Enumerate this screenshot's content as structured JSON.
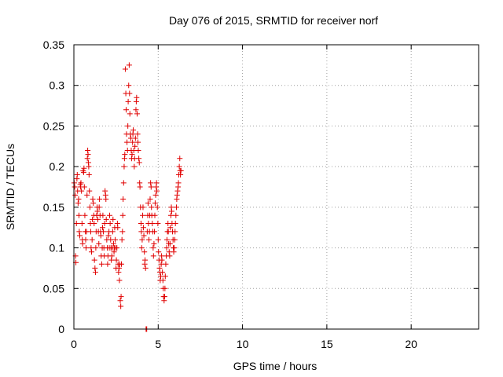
{
  "chart_data": {
    "type": "scatter",
    "title": "Day 076 of 2015, SRMTID for receiver norf",
    "xlabel": "GPS time / hours",
    "ylabel": "SRMTID / TECUs",
    "xlim": [
      0,
      24
    ],
    "ylim": [
      0,
      0.35
    ],
    "xticks": [
      "0",
      "5",
      "10",
      "15",
      "20"
    ],
    "yticks": [
      "0",
      "0.05",
      "0.1",
      "0.15",
      "0.2",
      "0.25",
      "0.3",
      "0.35"
    ],
    "grid": true,
    "marker": "+",
    "color": "#e00000",
    "points": [
      [
        0.02,
        0.18
      ],
      [
        0.05,
        0.175
      ],
      [
        0.08,
        0.165
      ],
      [
        0.1,
        0.09
      ],
      [
        0.12,
        0.082
      ],
      [
        0.15,
        0.13
      ],
      [
        0.18,
        0.185
      ],
      [
        0.2,
        0.19
      ],
      [
        0.22,
        0.17
      ],
      [
        0.25,
        0.155
      ],
      [
        0.28,
        0.16
      ],
      [
        0.3,
        0.14
      ],
      [
        0.32,
        0.12
      ],
      [
        0.35,
        0.115
      ],
      [
        0.38,
        0.178
      ],
      [
        0.4,
        0.175
      ],
      [
        0.42,
        0.18
      ],
      [
        0.45,
        0.17
      ],
      [
        0.48,
        0.13
      ],
      [
        0.5,
        0.11
      ],
      [
        0.52,
        0.105
      ],
      [
        0.55,
        0.195
      ],
      [
        0.58,
        0.193
      ],
      [
        0.6,
        0.198
      ],
      [
        0.62,
        0.175
      ],
      [
        0.65,
        0.14
      ],
      [
        0.68,
        0.12
      ],
      [
        0.7,
        0.11
      ],
      [
        0.72,
        0.1
      ],
      [
        0.75,
        0.12
      ],
      [
        0.78,
        0.165
      ],
      [
        0.8,
        0.21
      ],
      [
        0.82,
        0.22
      ],
      [
        0.84,
        0.215
      ],
      [
        0.86,
        0.205
      ],
      [
        0.88,
        0.2
      ],
      [
        0.9,
        0.19
      ],
      [
        0.92,
        0.17
      ],
      [
        0.95,
        0.15
      ],
      [
        0.98,
        0.13
      ],
      [
        1.0,
        0.12
      ],
      [
        1.02,
        0.1
      ],
      [
        1.05,
        0.095
      ],
      [
        1.08,
        0.11
      ],
      [
        1.1,
        0.135
      ],
      [
        1.12,
        0.16
      ],
      [
        1.15,
        0.155
      ],
      [
        1.18,
        0.14
      ],
      [
        1.2,
        0.13
      ],
      [
        1.22,
        0.085
      ],
      [
        1.25,
        0.075
      ],
      [
        1.28,
        0.07
      ],
      [
        1.3,
        0.1
      ],
      [
        1.32,
        0.12
      ],
      [
        1.35,
        0.14
      ],
      [
        1.38,
        0.15
      ],
      [
        1.4,
        0.145
      ],
      [
        1.42,
        0.135
      ],
      [
        1.45,
        0.12
      ],
      [
        1.48,
        0.105
      ],
      [
        1.5,
        0.15
      ],
      [
        1.52,
        0.16
      ],
      [
        1.55,
        0.14
      ],
      [
        1.58,
        0.12
      ],
      [
        1.6,
        0.115
      ],
      [
        1.62,
        0.09
      ],
      [
        1.65,
        0.08
      ],
      [
        1.68,
        0.1
      ],
      [
        1.7,
        0.125
      ],
      [
        1.72,
        0.14
      ],
      [
        1.75,
        0.12
      ],
      [
        1.78,
        0.1
      ],
      [
        1.8,
        0.09
      ],
      [
        1.82,
        0.13
      ],
      [
        1.85,
        0.17
      ],
      [
        1.88,
        0.165
      ],
      [
        1.9,
        0.16
      ],
      [
        1.92,
        0.135
      ],
      [
        1.95,
        0.11
      ],
      [
        1.98,
        0.1
      ],
      [
        2.0,
        0.08
      ],
      [
        2.02,
        0.09
      ],
      [
        2.05,
        0.115
      ],
      [
        2.08,
        0.12
      ],
      [
        2.1,
        0.1
      ],
      [
        2.12,
        0.14
      ],
      [
        2.15,
        0.13
      ],
      [
        2.18,
        0.11
      ],
      [
        2.2,
        0.1
      ],
      [
        2.22,
        0.085
      ],
      [
        2.25,
        0.09
      ],
      [
        2.28,
        0.1
      ],
      [
        2.3,
        0.12
      ],
      [
        2.32,
        0.135
      ],
      [
        2.35,
        0.105
      ],
      [
        2.38,
        0.095
      ],
      [
        2.4,
        0.1
      ],
      [
        2.42,
        0.125
      ],
      [
        2.45,
        0.11
      ],
      [
        2.48,
        0.1
      ],
      [
        2.5,
        0.075
      ],
      [
        2.52,
        0.085
      ],
      [
        2.55,
        0.1
      ],
      [
        2.58,
        0.13
      ],
      [
        2.6,
        0.125
      ],
      [
        2.62,
        0.08
      ],
      [
        2.65,
        0.07
      ],
      [
        2.68,
        0.075
      ],
      [
        2.7,
        0.06
      ],
      [
        2.72,
        0.08
      ],
      [
        2.75,
        0.035
      ],
      [
        2.78,
        0.028
      ],
      [
        2.8,
        0.04
      ],
      [
        2.82,
        0.08
      ],
      [
        2.85,
        0.11
      ],
      [
        2.88,
        0.12
      ],
      [
        2.9,
        0.14
      ],
      [
        2.92,
        0.16
      ],
      [
        2.95,
        0.18
      ],
      [
        2.98,
        0.2
      ],
      [
        3.0,
        0.21
      ],
      [
        3.02,
        0.215
      ],
      [
        3.05,
        0.32
      ],
      [
        3.08,
        0.29
      ],
      [
        3.1,
        0.27
      ],
      [
        3.12,
        0.24
      ],
      [
        3.15,
        0.23
      ],
      [
        3.18,
        0.22
      ],
      [
        3.2,
        0.25
      ],
      [
        3.22,
        0.28
      ],
      [
        3.25,
        0.3
      ],
      [
        3.28,
        0.325
      ],
      [
        3.3,
        0.29
      ],
      [
        3.32,
        0.265
      ],
      [
        3.35,
        0.24
      ],
      [
        3.38,
        0.235
      ],
      [
        3.4,
        0.22
      ],
      [
        3.42,
        0.21
      ],
      [
        3.45,
        0.215
      ],
      [
        3.48,
        0.23
      ],
      [
        3.5,
        0.24
      ],
      [
        3.52,
        0.245
      ],
      [
        3.55,
        0.22
      ],
      [
        3.58,
        0.2
      ],
      [
        3.6,
        0.21
      ],
      [
        3.62,
        0.225
      ],
      [
        3.65,
        0.235
      ],
      [
        3.68,
        0.27
      ],
      [
        3.7,
        0.28
      ],
      [
        3.72,
        0.285
      ],
      [
        3.75,
        0.265
      ],
      [
        3.78,
        0.24
      ],
      [
        3.8,
        0.23
      ],
      [
        3.82,
        0.22
      ],
      [
        3.85,
        0.21
      ],
      [
        3.88,
        0.205
      ],
      [
        3.9,
        0.18
      ],
      [
        3.92,
        0.175
      ],
      [
        3.95,
        0.15
      ],
      [
        3.98,
        0.13
      ],
      [
        4.0,
        0.12
      ],
      [
        4.02,
        0.1
      ],
      [
        4.05,
        0.11
      ],
      [
        4.08,
        0.14
      ],
      [
        4.1,
        0.15
      ],
      [
        4.12,
        0.125
      ],
      [
        4.15,
        0.115
      ],
      [
        4.18,
        0.095
      ],
      [
        4.2,
        0.08
      ],
      [
        4.22,
        0.085
      ],
      [
        4.25,
        0.075
      ],
      [
        4.28,
        0.0
      ],
      [
        4.3,
        0.0
      ],
      [
        4.32,
        0.0
      ],
      [
        4.35,
        0.12
      ],
      [
        4.38,
        0.14
      ],
      [
        4.4,
        0.155
      ],
      [
        4.42,
        0.13
      ],
      [
        4.45,
        0.11
      ],
      [
        4.48,
        0.12
      ],
      [
        4.5,
        0.14
      ],
      [
        4.52,
        0.16
      ],
      [
        4.55,
        0.18
      ],
      [
        4.58,
        0.175
      ],
      [
        4.6,
        0.15
      ],
      [
        4.62,
        0.14
      ],
      [
        4.65,
        0.13
      ],
      [
        4.68,
        0.12
      ],
      [
        4.7,
        0.1
      ],
      [
        4.72,
        0.09
      ],
      [
        4.75,
        0.105
      ],
      [
        4.78,
        0.12
      ],
      [
        4.8,
        0.14
      ],
      [
        4.82,
        0.155
      ],
      [
        4.85,
        0.165
      ],
      [
        4.88,
        0.175
      ],
      [
        4.9,
        0.18
      ],
      [
        4.92,
        0.17
      ],
      [
        4.95,
        0.15
      ],
      [
        4.98,
        0.13
      ],
      [
        5.0,
        0.11
      ],
      [
        5.02,
        0.095
      ],
      [
        5.05,
        0.085
      ],
      [
        5.08,
        0.075
      ],
      [
        5.1,
        0.07
      ],
      [
        5.12,
        0.06
      ],
      [
        5.15,
        0.065
      ],
      [
        5.18,
        0.08
      ],
      [
        5.2,
        0.09
      ],
      [
        5.22,
        0.085
      ],
      [
        5.25,
        0.07
      ],
      [
        5.28,
        0.06
      ],
      [
        5.3,
        0.05
      ],
      [
        5.32,
        0.04
      ],
      [
        5.35,
        0.035
      ],
      [
        5.38,
        0.04
      ],
      [
        5.4,
        0.05
      ],
      [
        5.42,
        0.065
      ],
      [
        5.45,
        0.08
      ],
      [
        5.48,
        0.09
      ],
      [
        5.5,
        0.1
      ],
      [
        5.52,
        0.11
      ],
      [
        5.55,
        0.12
      ],
      [
        5.58,
        0.13
      ],
      [
        5.6,
        0.12
      ],
      [
        5.62,
        0.105
      ],
      [
        5.65,
        0.095
      ],
      [
        5.68,
        0.09
      ],
      [
        5.7,
        0.105
      ],
      [
        5.72,
        0.125
      ],
      [
        5.75,
        0.14
      ],
      [
        5.78,
        0.15
      ],
      [
        5.8,
        0.145
      ],
      [
        5.82,
        0.13
      ],
      [
        5.85,
        0.12
      ],
      [
        5.88,
        0.11
      ],
      [
        5.9,
        0.1
      ],
      [
        5.92,
        0.095
      ],
      [
        5.95,
        0.1
      ],
      [
        5.98,
        0.11
      ],
      [
        6.0,
        0.12
      ],
      [
        6.02,
        0.13
      ],
      [
        6.05,
        0.14
      ],
      [
        6.08,
        0.15
      ],
      [
        6.1,
        0.16
      ],
      [
        6.12,
        0.165
      ],
      [
        6.15,
        0.17
      ],
      [
        6.18,
        0.175
      ],
      [
        6.2,
        0.18
      ],
      [
        6.22,
        0.19
      ],
      [
        6.25,
        0.2
      ],
      [
        6.28,
        0.21
      ],
      [
        6.3,
        0.195
      ],
      [
        6.32,
        0.19
      ],
      [
        6.35,
        0.195
      ]
    ]
  }
}
